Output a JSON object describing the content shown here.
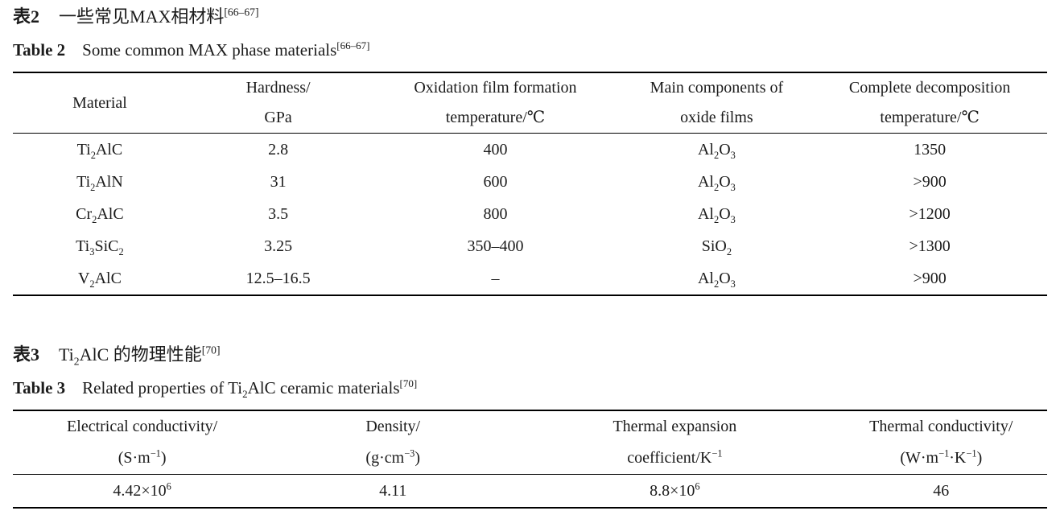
{
  "document": {
    "background": "#ffffff",
    "text_color": "#1b1b1b",
    "rule_color": "#000000"
  },
  "table2": {
    "caption_zh": {
      "label": "表2",
      "text": "一些常见MAX相材料^{[66–67]}"
    },
    "caption_en": {
      "label": "Table 2",
      "text": "Some common MAX phase materials^{[66–67]}"
    },
    "columns": [
      {
        "line1": "Material",
        "line2": ""
      },
      {
        "line1": "Hardness/",
        "line2": "GPa"
      },
      {
        "line1": "Oxidation film formation",
        "line2": "temperature/℃"
      },
      {
        "line1": "Main components of",
        "line2": "oxide films"
      },
      {
        "line1": "Complete decomposition",
        "line2": "temperature/℃"
      }
    ],
    "rows": [
      [
        "Ti_{2}AlC",
        "2.8",
        "400",
        "Al_{2}O_{3}",
        "1350"
      ],
      [
        "Ti_{2}AlN",
        "31",
        "600",
        "Al_{2}O_{3}",
        ">900"
      ],
      [
        "Cr_{2}AlC",
        "3.5",
        "800",
        "Al_{2}O_{3}",
        ">1200"
      ],
      [
        "Ti_{3}SiC_{2}",
        "3.25",
        "350–400",
        "SiO_{2}",
        ">1300"
      ],
      [
        "V_{2}AlC",
        "12.5–16.5",
        "–",
        "Al_{2}O_{3}",
        ">900"
      ]
    ]
  },
  "table3": {
    "caption_zh": {
      "label": "表3",
      "text": "Ti_{2}AlC 的物理性能^{[70]}"
    },
    "caption_en": {
      "label": "Table 3",
      "text": "Related properties of Ti_{2}AlC ceramic materials^{[70]}"
    },
    "columns": [
      {
        "line1": "Electrical conductivity/",
        "line2": "(S·m^{−1})"
      },
      {
        "line1": "Density/",
        "line2": "(g·cm^{−3})"
      },
      {
        "line1": "Thermal expansion",
        "line2": "coefficient/K^{−1}"
      },
      {
        "line1": "Thermal conductivity/",
        "line2": "(W·m^{−1}·K^{−1})"
      }
    ],
    "rows": [
      [
        "4.42×10^{6}",
        "4.11",
        "8.8×10^{6}",
        "46"
      ]
    ]
  }
}
